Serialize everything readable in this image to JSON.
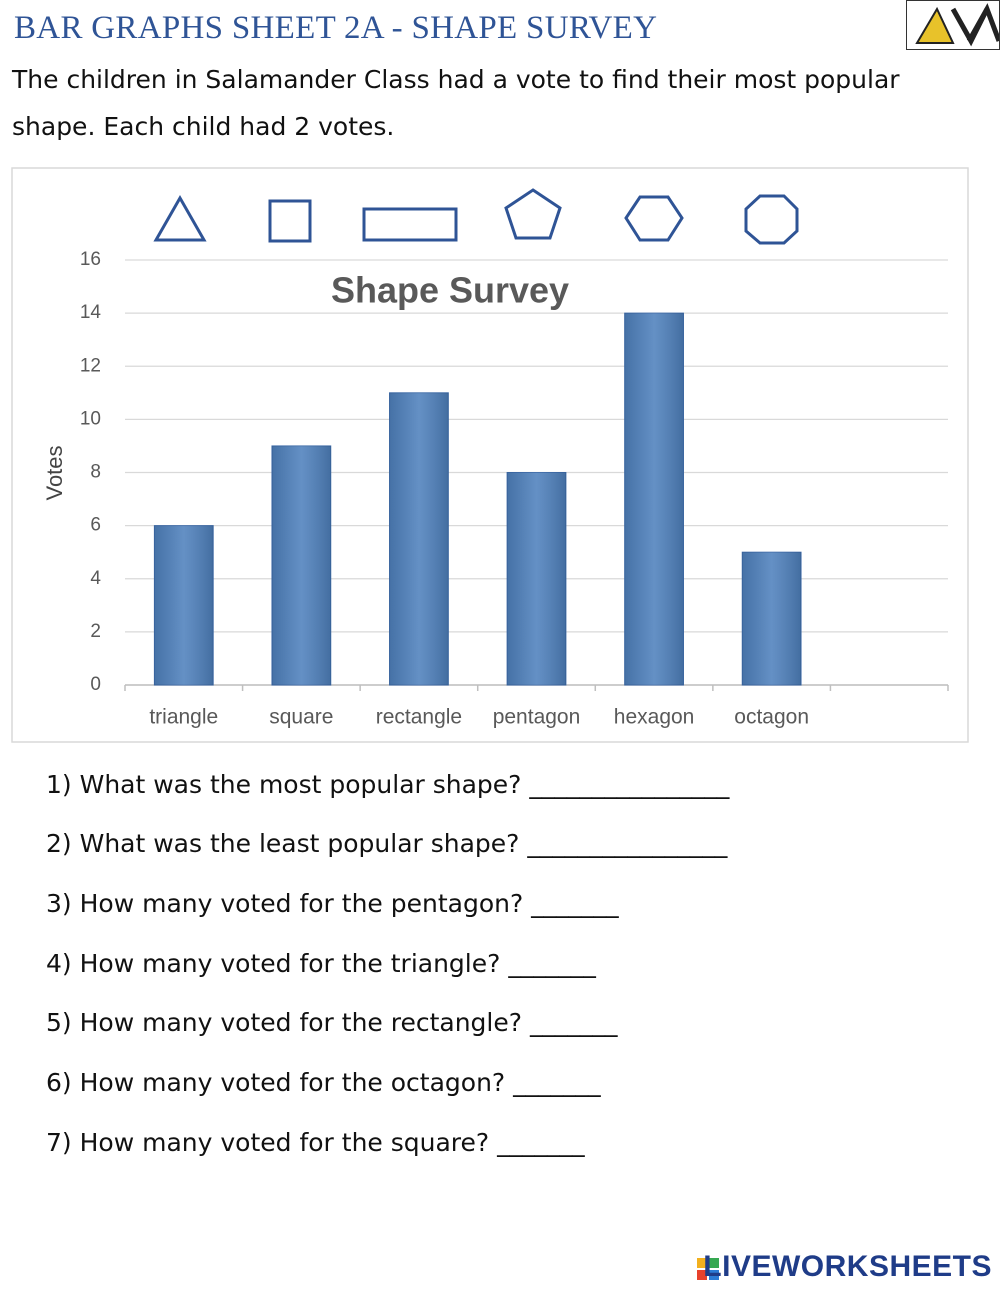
{
  "header": {
    "title": "BAR GRAPHS SHEET 2A - SHAPE SURVEY",
    "intro": "The children in Salamander Class had a vote to find their most popular shape. Each child had 2 votes."
  },
  "chart_data": {
    "type": "bar",
    "title": "Shape Survey",
    "y_label": "Votes",
    "categories": [
      "triangle",
      "square",
      "rectangle",
      "pentagon",
      "hexagon",
      "octagon",
      null
    ],
    "values": [
      6,
      9,
      11,
      8,
      14,
      5,
      null
    ],
    "color": "#4f81bd",
    "ylim": [
      0,
      16
    ],
    "yticks": [
      0,
      2,
      4,
      6,
      8,
      10,
      12,
      14,
      16
    ],
    "grid": true
  },
  "questions": [
    "1) What was the most popular shape? ________________",
    "2) What was the least popular shape? ________________",
    "3) How many voted for the pentagon? _______",
    "4) How many voted for the triangle? _______",
    "5) How many voted for the rectangle? _______",
    "6) How many voted for the octagon? _______",
    "7) How many voted for the square? _______"
  ],
  "footer": {
    "brand": "LIVEWORKSHEETS"
  }
}
